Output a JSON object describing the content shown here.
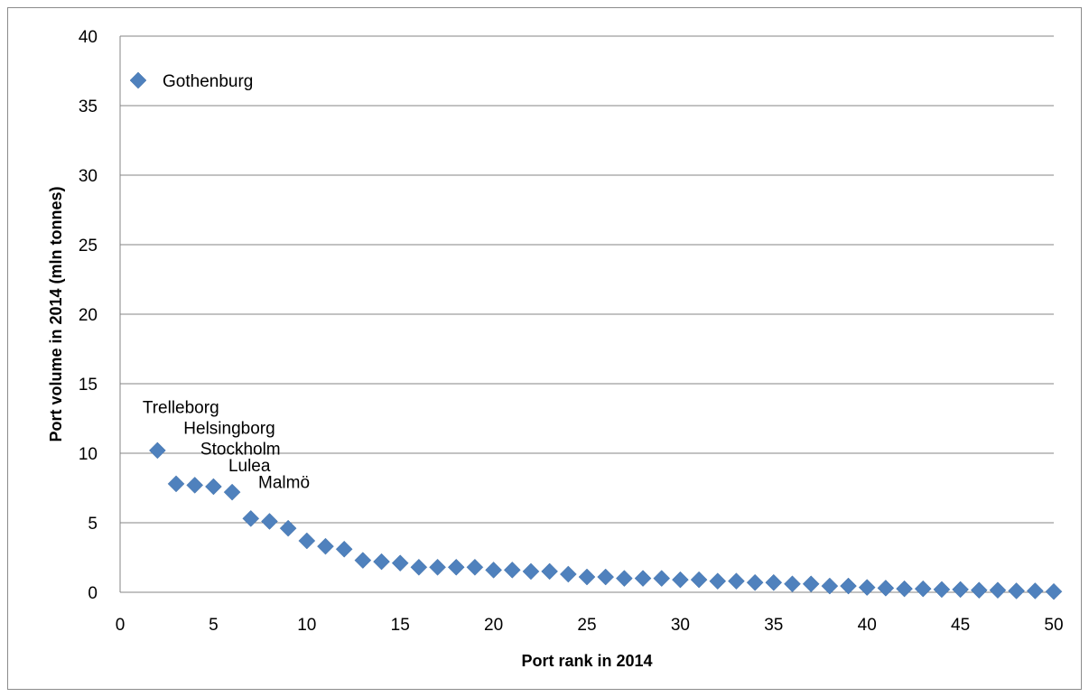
{
  "chart_data": {
    "type": "scatter",
    "xlabel": "Port rank in 2014",
    "ylabel": "Port volume in 2014 (mln tonnes)",
    "xlim": [
      0,
      50
    ],
    "ylim": [
      0,
      40
    ],
    "x_ticks": [
      "0",
      "5",
      "10",
      "15",
      "20",
      "25",
      "30",
      "35",
      "40",
      "45",
      "50"
    ],
    "y_ticks": [
      "0",
      "5",
      "10",
      "15",
      "20",
      "25",
      "30",
      "35",
      "40"
    ],
    "grid": "horizontal",
    "marker": "diamond",
    "color": "#4F81BD",
    "x": [
      2,
      3,
      4,
      5,
      6,
      7,
      8,
      9,
      10,
      11,
      12,
      13,
      14,
      15,
      16,
      17,
      18,
      19,
      20,
      21,
      22,
      23,
      24,
      25,
      26,
      27,
      28,
      29,
      30,
      31,
      32,
      33,
      34,
      35,
      36,
      37,
      38,
      39,
      40,
      41,
      42,
      43,
      44,
      45,
      46,
      47,
      48,
      49,
      50
    ],
    "y": [
      10.2,
      7.8,
      7.7,
      7.6,
      7.2,
      5.3,
      5.1,
      4.6,
      3.7,
      3.3,
      3.1,
      2.3,
      2.2,
      2.1,
      1.8,
      1.8,
      1.8,
      1.8,
      1.6,
      1.6,
      1.5,
      1.5,
      1.3,
      1.1,
      1.1,
      1.0,
      1.0,
      1.0,
      0.9,
      0.9,
      0.8,
      0.8,
      0.7,
      0.7,
      0.6,
      0.6,
      0.45,
      0.45,
      0.35,
      0.3,
      0.25,
      0.25,
      0.2,
      0.2,
      0.15,
      0.15,
      0.1,
      0.1,
      0.05
    ],
    "legend": {
      "label": "Gothenburg",
      "position": "top-left"
    },
    "annotations": [
      {
        "text": "Trelleborg",
        "x": 1.2,
        "y": 12.9
      },
      {
        "text": "Helsingborg",
        "x": 3.4,
        "y": 11.4
      },
      {
        "text": "Stockholm",
        "x": 4.3,
        "y": 9.9
      },
      {
        "text": "Lulea",
        "x": 5.8,
        "y": 8.7
      },
      {
        "text": "Malmö",
        "x": 7.4,
        "y": 7.5
      }
    ]
  }
}
